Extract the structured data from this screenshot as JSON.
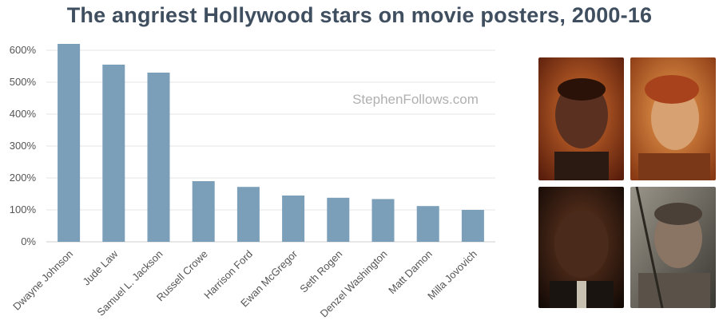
{
  "title": "The angriest Hollywood stars on movie posters, 2000-16",
  "watermark": "StephenFollows.com",
  "chart_data": {
    "type": "bar",
    "title": "The angriest Hollywood stars on movie posters, 2000-16",
    "xlabel": "",
    "ylabel": "",
    "categories": [
      "Dwayne Johnson",
      "Jude Law",
      "Samuel L. Jackson",
      "Russell Crowe",
      "Harrison Ford",
      "Ewan McGregor",
      "Seth Rogen",
      "Denzel Washington",
      "Matt Damon",
      "Milla Jovovich"
    ],
    "values": [
      620,
      555,
      530,
      190,
      172,
      145,
      138,
      134,
      112,
      100
    ],
    "ylim": [
      0,
      600
    ],
    "yticks": [
      0,
      100,
      200,
      300,
      400,
      500,
      600
    ],
    "ytick_labels": [
      "0%",
      "100%",
      "200%",
      "300%",
      "400%",
      "500%",
      "600%"
    ],
    "grid": true,
    "bar_color": "#7b9eb9"
  },
  "photos": [
    {
      "name": "photo-dwayne-johnson",
      "bg": "#b2502a",
      "skin": "#6a3a22"
    },
    {
      "name": "photo-jude-law",
      "bg": "#c8702c",
      "skin": "#d9a070"
    },
    {
      "name": "photo-samuel-l-jackson",
      "bg": "#3a2418",
      "skin": "#5a3422"
    },
    {
      "name": "photo-russell-crowe",
      "bg": "#6f6a60",
      "skin": "#8a7868"
    }
  ]
}
